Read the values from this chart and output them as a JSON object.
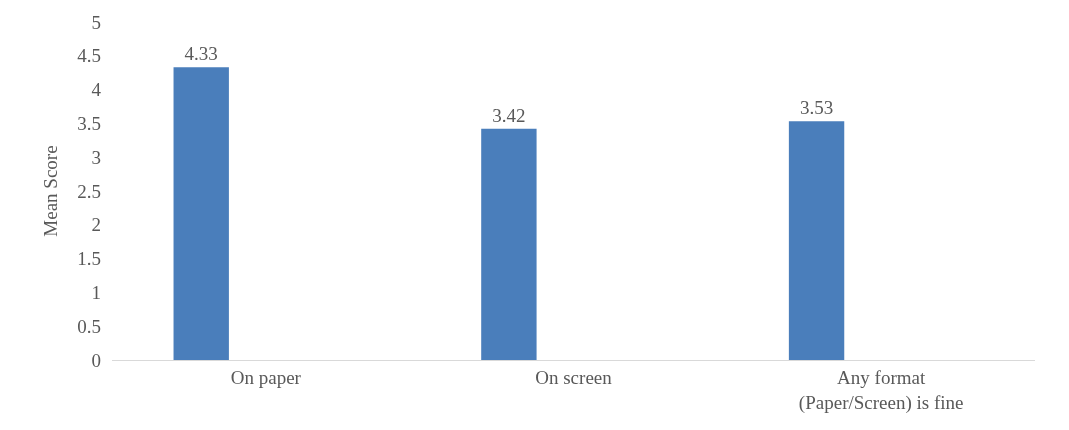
{
  "chart_data": {
    "type": "bar",
    "ylabel": "Mean Score",
    "categories": [
      "On paper",
      "On screen",
      "Any format (Paper/Screen) is fine"
    ],
    "values": [
      4.33,
      3.42,
      3.53
    ],
    "color": "#4a7ebb",
    "ylim": [
      0,
      5
    ],
    "yticks": [
      0,
      0.5,
      1,
      1.5,
      2,
      2.5,
      3,
      3.5,
      4,
      4.5,
      5
    ],
    "data_labels": true,
    "grid": false,
    "legend": false
  }
}
